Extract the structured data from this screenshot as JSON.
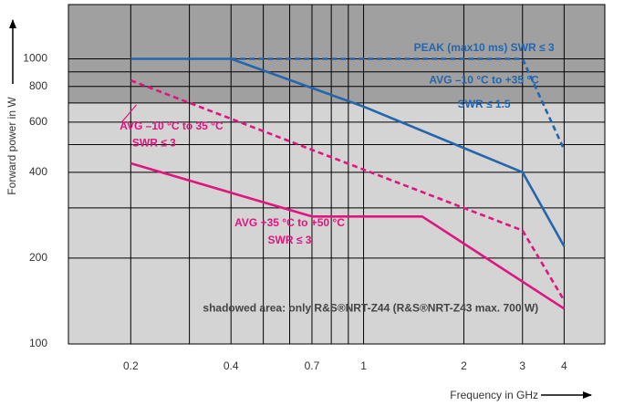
{
  "chart_data": {
    "type": "line",
    "xlabel": "Frequency in GHz",
    "ylabel": "Forward power in W",
    "x_scale": "log",
    "y_scale": "log",
    "xlim": [
      0.13,
      5.3
    ],
    "ylim": [
      100,
      1550
    ],
    "x_ticks": [
      0.2,
      0.4,
      0.7,
      1,
      2,
      3,
      4
    ],
    "x_tick_labels": [
      "0.2",
      "0.4",
      "0.7",
      "1",
      "2",
      "3",
      "4"
    ],
    "x_grid": [
      0.2,
      0.3,
      0.4,
      0.5,
      0.6,
      0.7,
      0.8,
      0.9,
      1,
      2,
      3,
      4
    ],
    "y_ticks": [
      100,
      200,
      400,
      600,
      800,
      1000
    ],
    "y_tick_labels": [
      "100",
      "200",
      "400",
      "600",
      "800",
      "1000"
    ],
    "y_grid": [
      100,
      200,
      300,
      400,
      500,
      600,
      700,
      800,
      900,
      1000
    ],
    "grid": true,
    "shaded_region": {
      "y_from": 700,
      "color": "#a0a0a0",
      "label": "shadowed area: only R&S®NRT-Z44 (R&S®NRT-Z43 max. 700 W)"
    },
    "colors": {
      "blue": "#2466ad",
      "magenta": "#e0157f",
      "plot_bg": "#d4d4d4",
      "shade": "#a0a0a0"
    },
    "series": [
      {
        "style": "solid",
        "color": "#2466ad",
        "x": [
          0.2,
          0.4,
          1,
          3,
          4
        ],
        "y": [
          1000,
          1000,
          680,
          400,
          220
        ]
      },
      {
        "style": "dashed",
        "color": "#2466ad",
        "x": [
          0.4,
          3,
          4
        ],
        "y": [
          1000,
          1000,
          480
        ]
      },
      {
        "style": "dashed",
        "color": "#e0157f",
        "x": [
          0.2,
          3,
          4
        ],
        "y": [
          840,
          250,
          142
        ]
      },
      {
        "style": "solid",
        "color": "#e0157f",
        "x": [
          0.2,
          0.7,
          1.5,
          4
        ],
        "y": [
          430,
          280,
          280,
          133
        ]
      }
    ],
    "annotations": [
      {
        "text": "PEAK (max10 ms) SWR ≤ 3",
        "color": "#2466ad",
        "x": 2.3,
        "y": 1090
      },
      {
        "text": "AVG –10 °C to +35 °C",
        "color": "#2466ad",
        "x": 2.3,
        "y": 840
      },
      {
        "text": "SWR ≤ 1.5",
        "color": "#2466ad",
        "x": 2.3,
        "y": 690
      },
      {
        "text": "AVG –10 °C to 35 °C",
        "color": "#e0157f",
        "x": 0.265,
        "y": 578
      },
      {
        "text": "SWR ≤ 3",
        "color": "#e0157f",
        "x": 0.235,
        "y": 505
      },
      {
        "text": "AVG +35 °C  to +50 °C",
        "color": "#e0157f",
        "x": 0.6,
        "y": 265
      },
      {
        "text": "SWR ≤ 3",
        "color": "#e0157f",
        "x": 0.6,
        "y": 230
      },
      {
        "text": "shadowed area: only R&S®NRT-Z44 (R&S®NRT-Z43 max. 700 W)",
        "color": "#444444",
        "x": 1.05,
        "y": 133
      }
    ]
  }
}
